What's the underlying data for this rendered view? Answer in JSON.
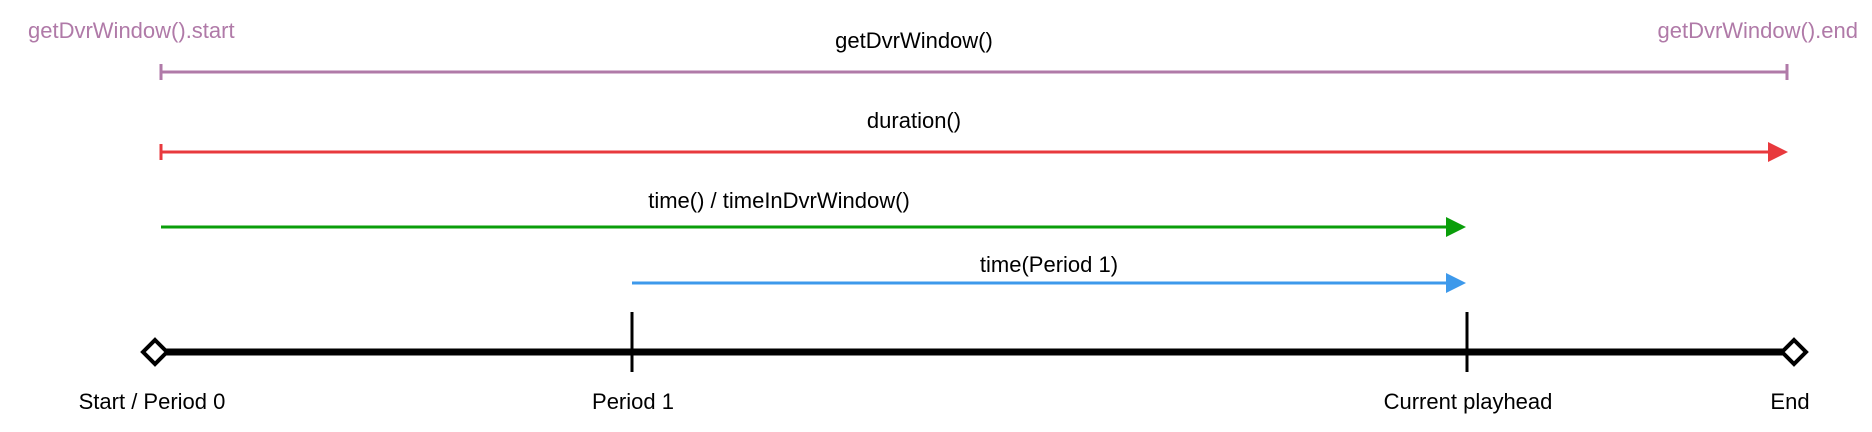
{
  "colors": {
    "dvr_window": "#b07aa8",
    "duration": "#e8393d",
    "time": "#0a9e0a",
    "time_period": "#3d99eb",
    "timeline": "#000000"
  },
  "dvr_window": {
    "start_label": "getDvrWindow().start",
    "end_label": "getDvrWindow().end",
    "label": "getDvrWindow()"
  },
  "duration": {
    "label": "duration()"
  },
  "time": {
    "label": "time() / timeInDvrWindow()"
  },
  "time_period": {
    "label": "time(Period 1)"
  },
  "timeline": {
    "start_label": "Start / Period 0",
    "period1_label": "Period 1",
    "playhead_label": "Current playhead",
    "end_label": "End"
  }
}
